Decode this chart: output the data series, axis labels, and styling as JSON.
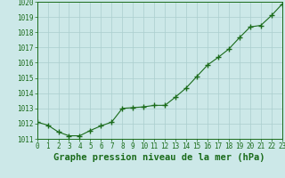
{
  "x": [
    0,
    1,
    2,
    3,
    4,
    5,
    6,
    7,
    8,
    9,
    10,
    11,
    12,
    13,
    14,
    15,
    16,
    17,
    18,
    19,
    20,
    21,
    22,
    23
  ],
  "y": [
    1012.1,
    1011.9,
    1011.45,
    1011.2,
    1011.2,
    1011.55,
    1011.85,
    1012.1,
    1013.0,
    1013.05,
    1013.1,
    1013.2,
    1013.2,
    1013.75,
    1014.35,
    1015.1,
    1015.85,
    1016.35,
    1016.9,
    1017.65,
    1018.35,
    1018.45,
    1019.1,
    1019.85
  ],
  "line_color": "#1a6b1a",
  "marker": "+",
  "marker_size": 4,
  "marker_linewidth": 1.0,
  "xlabel": "Graphe pression niveau de la mer (hPa)",
  "xlabel_color": "#1a6b1a",
  "background_color": "#cce8e8",
  "grid_color": "#aacece",
  "tick_color": "#1a6b1a",
  "spine_color": "#1a6b1a",
  "ylim": [
    1011.0,
    1020.0
  ],
  "xlim": [
    0,
    23
  ],
  "yticks": [
    1011,
    1012,
    1013,
    1014,
    1015,
    1016,
    1017,
    1018,
    1019,
    1020
  ],
  "xticks": [
    0,
    1,
    2,
    3,
    4,
    5,
    6,
    7,
    8,
    9,
    10,
    11,
    12,
    13,
    14,
    15,
    16,
    17,
    18,
    19,
    20,
    21,
    22,
    23
  ],
  "tick_fontsize": 5.5,
  "xlabel_fontsize": 7.5,
  "xlabel_bold": true,
  "linewidth": 0.8
}
